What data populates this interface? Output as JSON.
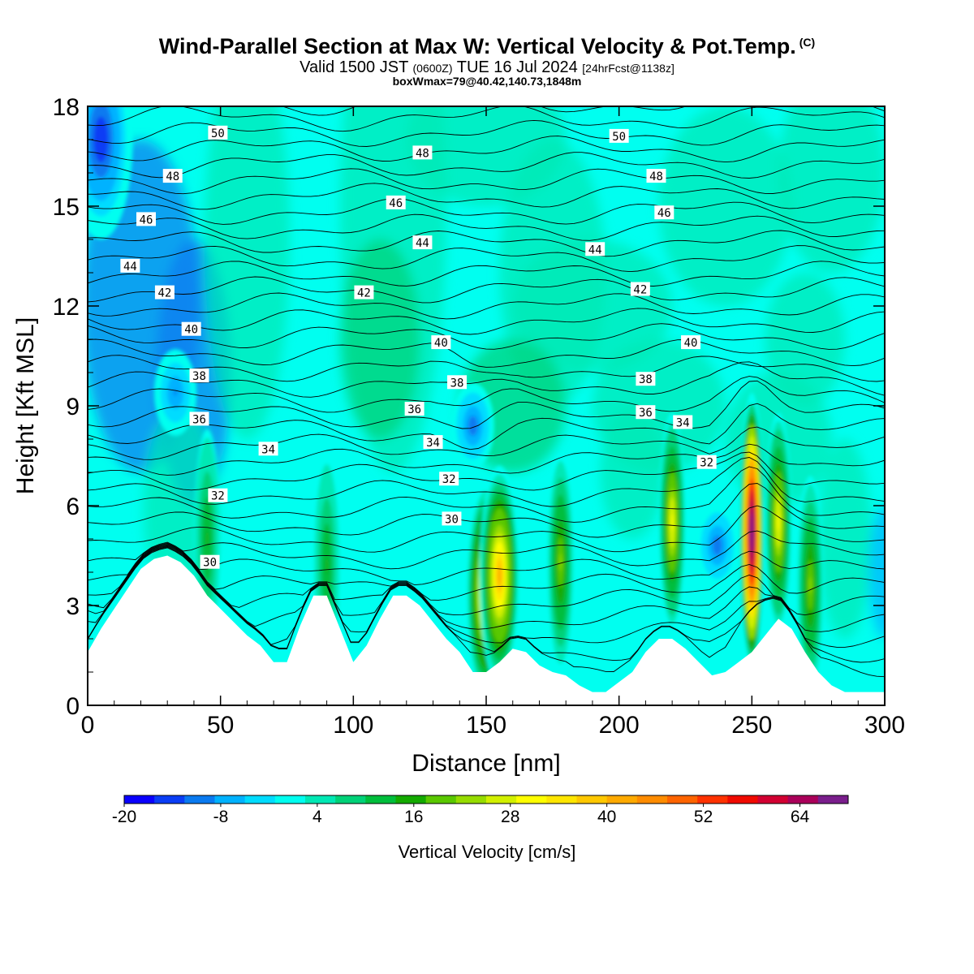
{
  "header": {
    "title": "Wind-Parallel Section at Max W: Vertical Velocity & Pot.Temp.",
    "title_mark": "(C)",
    "valid_prefix": "Valid 1500 JST",
    "valid_utc": "(0600Z)",
    "valid_date": "TUE 16 Jul 2024",
    "forecast_info": "[24hrFcst@1138z]",
    "box_info": "boxWmax=79@40.42,140.73,1848m"
  },
  "chart_data": {
    "type": "heatmap",
    "xlabel": "Distance [nm]",
    "ylabel": "Height [Kft MSL]",
    "xlim": [
      0,
      300
    ],
    "ylim": [
      0,
      18
    ],
    "xticks": [
      0,
      50,
      100,
      150,
      200,
      250,
      300
    ],
    "yticks": [
      0,
      3,
      6,
      9,
      12,
      15,
      18
    ],
    "colorbar": {
      "label": "Vertical Velocity [cm/s]",
      "ticks": [
        -20,
        -8,
        4,
        16,
        28,
        40,
        52,
        64
      ],
      "range": [
        -20,
        70
      ],
      "colors": [
        "#0a00ff",
        "#0a3df5",
        "#0a7af0",
        "#00b2ff",
        "#00dcff",
        "#00fff0",
        "#00e8b4",
        "#00d278",
        "#00be3c",
        "#14aa00",
        "#5ac800",
        "#96dc00",
        "#d2f000",
        "#ffff00",
        "#ffe600",
        "#ffc800",
        "#ffaa00",
        "#ff8c00",
        "#ff6400",
        "#ff3200",
        "#f00a00",
        "#d20032",
        "#aa005a",
        "#7a1e8c"
      ]
    },
    "terrain_kft": [
      [
        0,
        1.6
      ],
      [
        5,
        2.3
      ],
      [
        10,
        2.9
      ],
      [
        15,
        3.5
      ],
      [
        20,
        4.1
      ],
      [
        25,
        4.4
      ],
      [
        30,
        4.5
      ],
      [
        35,
        4.3
      ],
      [
        40,
        3.9
      ],
      [
        45,
        3.3
      ],
      [
        50,
        2.9
      ],
      [
        55,
        2.5
      ],
      [
        60,
        2.1
      ],
      [
        65,
        1.8
      ],
      [
        70,
        1.3
      ],
      [
        75,
        1.3
      ],
      [
        80,
        2.4
      ],
      [
        85,
        3.3
      ],
      [
        90,
        3.3
      ],
      [
        95,
        2.3
      ],
      [
        100,
        1.3
      ],
      [
        105,
        1.8
      ],
      [
        110,
        2.6
      ],
      [
        115,
        3.3
      ],
      [
        120,
        3.3
      ],
      [
        125,
        3.0
      ],
      [
        130,
        2.5
      ],
      [
        135,
        2.0
      ],
      [
        140,
        1.6
      ],
      [
        145,
        1.0
      ],
      [
        150,
        1.0
      ],
      [
        155,
        1.3
      ],
      [
        160,
        1.7
      ],
      [
        165,
        1.6
      ],
      [
        170,
        1.2
      ],
      [
        175,
        1.0
      ],
      [
        180,
        0.9
      ],
      [
        185,
        0.6
      ],
      [
        190,
        0.4
      ],
      [
        195,
        0.4
      ],
      [
        200,
        0.7
      ],
      [
        205,
        1.0
      ],
      [
        210,
        1.6
      ],
      [
        215,
        2.0
      ],
      [
        220,
        2.0
      ],
      [
        225,
        1.7
      ],
      [
        230,
        1.3
      ],
      [
        235,
        0.9
      ],
      [
        240,
        1.0
      ],
      [
        245,
        1.3
      ],
      [
        250,
        1.6
      ],
      [
        255,
        2.1
      ],
      [
        260,
        2.6
      ],
      [
        265,
        2.3
      ],
      [
        270,
        1.6
      ],
      [
        275,
        1.0
      ],
      [
        280,
        0.6
      ],
      [
        285,
        0.4
      ],
      [
        290,
        0.4
      ],
      [
        295,
        0.4
      ],
      [
        300,
        0.4
      ]
    ],
    "updraft_cores": [
      {
        "x": 150,
        "z": 3.4,
        "w_cm_s": 38
      },
      {
        "x": 155,
        "z": 3.9,
        "w_cm_s": 40
      },
      {
        "x": 178,
        "z": 4.3,
        "w_cm_s": 22
      },
      {
        "x": 220,
        "z": 5.5,
        "w_cm_s": 30
      },
      {
        "x": 250,
        "z": 5.2,
        "w_cm_s": 79
      },
      {
        "x": 260,
        "z": 5.5,
        "w_cm_s": 30
      },
      {
        "x": 272,
        "z": 3.6,
        "w_cm_s": 22
      },
      {
        "x": 45,
        "z": 5.0,
        "w_cm_s": 14
      },
      {
        "x": 90,
        "z": 4.2,
        "w_cm_s": 14
      }
    ],
    "downdraft_cores": [
      {
        "x": 5,
        "z": 17.0,
        "w_cm_s": -16
      },
      {
        "x": 145,
        "z": 8.4,
        "w_cm_s": -12
      },
      {
        "x": 237,
        "z": 4.8,
        "w_cm_s": -12
      },
      {
        "x": 33,
        "z": 9.4,
        "w_cm_s": -9
      }
    ],
    "theta_levels_C": [
      30,
      32,
      34,
      36,
      38,
      40,
      42,
      44,
      46,
      48,
      50
    ],
    "theta_labels": [
      {
        "text": "50",
        "x": 49,
        "z": 17.2
      },
      {
        "text": "50",
        "x": 200,
        "z": 17.1
      },
      {
        "text": "48",
        "x": 32,
        "z": 15.9
      },
      {
        "text": "48",
        "x": 126,
        "z": 16.6
      },
      {
        "text": "48",
        "x": 214,
        "z": 15.9
      },
      {
        "text": "46",
        "x": 22,
        "z": 14.6
      },
      {
        "text": "46",
        "x": 116,
        "z": 15.1
      },
      {
        "text": "46",
        "x": 217,
        "z": 14.8
      },
      {
        "text": "44",
        "x": 16,
        "z": 13.2
      },
      {
        "text": "44",
        "x": 126,
        "z": 13.9
      },
      {
        "text": "44",
        "x": 191,
        "z": 13.7
      },
      {
        "text": "42",
        "x": 29,
        "z": 12.4
      },
      {
        "text": "42",
        "x": 104,
        "z": 12.4
      },
      {
        "text": "42",
        "x": 208,
        "z": 12.5
      },
      {
        "text": "40",
        "x": 39,
        "z": 11.3
      },
      {
        "text": "40",
        "x": 133,
        "z": 10.9
      },
      {
        "text": "40",
        "x": 227,
        "z": 10.9
      },
      {
        "text": "38",
        "x": 42,
        "z": 9.9
      },
      {
        "text": "38",
        "x": 139,
        "z": 9.7
      },
      {
        "text": "38",
        "x": 210,
        "z": 9.8
      },
      {
        "text": "36",
        "x": 42,
        "z": 8.6
      },
      {
        "text": "36",
        "x": 123,
        "z": 8.9
      },
      {
        "text": "36",
        "x": 210,
        "z": 8.8
      },
      {
        "text": "34",
        "x": 68,
        "z": 7.7
      },
      {
        "text": "34",
        "x": 130,
        "z": 7.9
      },
      {
        "text": "34",
        "x": 224,
        "z": 8.5
      },
      {
        "text": "32",
        "x": 49,
        "z": 6.3
      },
      {
        "text": "32",
        "x": 136,
        "z": 6.8
      },
      {
        "text": "32",
        "x": 233,
        "z": 7.3
      },
      {
        "text": "30",
        "x": 46,
        "z": 4.3
      },
      {
        "text": "30",
        "x": 137,
        "z": 5.6
      }
    ]
  }
}
